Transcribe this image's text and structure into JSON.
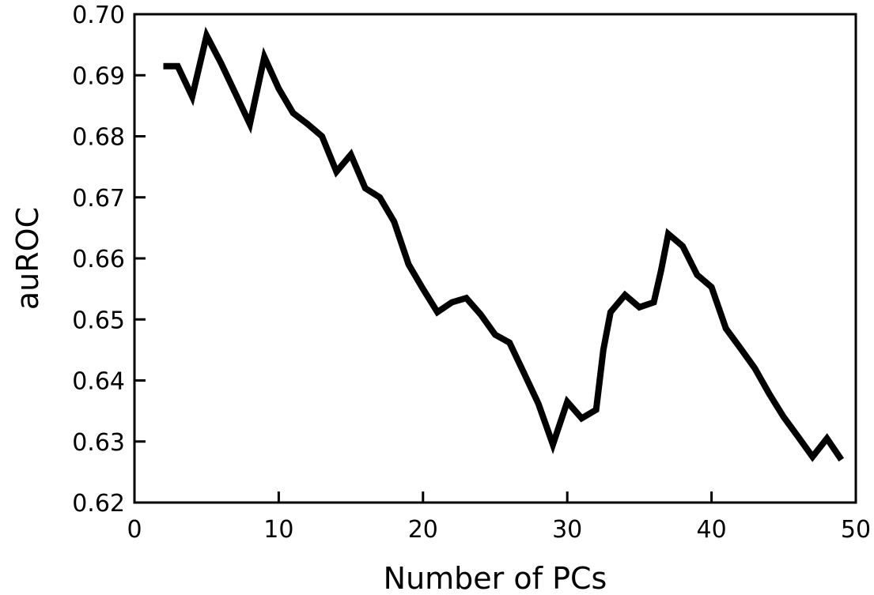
{
  "chart_data": {
    "type": "line",
    "title": "",
    "xlabel": "Number of PCs",
    "ylabel": "auROC",
    "xlim": [
      0,
      50
    ],
    "ylim": [
      0.62,
      0.7
    ],
    "x_ticks": [
      0,
      10,
      20,
      30,
      40,
      50
    ],
    "x_tick_labels": [
      "0",
      "10",
      "20",
      "30",
      "40",
      "50"
    ],
    "y_ticks": [
      0.62,
      0.63,
      0.64,
      0.65,
      0.66,
      0.67,
      0.68,
      0.69,
      0.7
    ],
    "y_tick_labels": [
      "0.62",
      "0.63",
      "0.64",
      "0.65",
      "0.66",
      "0.67",
      "0.68",
      "0.69",
      "0.70"
    ],
    "grid": false,
    "legend": "none",
    "colors": {
      "line": "#000000",
      "axes": "#000000",
      "background": "#ffffff"
    },
    "series": [
      {
        "x": [
          2,
          3,
          4,
          5,
          6,
          7,
          8,
          9,
          10,
          11,
          12,
          13,
          14,
          15,
          16,
          17,
          18,
          19,
          20,
          21,
          22,
          23,
          24,
          25,
          26,
          27,
          28,
          29,
          30,
          31,
          32,
          32.5,
          33,
          34,
          35,
          36,
          36.5,
          37,
          38,
          39,
          40,
          41,
          42,
          43,
          44,
          45,
          46,
          47,
          48,
          49
        ],
        "values": [
          0.6915,
          0.6915,
          0.6865,
          0.6965,
          0.692,
          0.687,
          0.682,
          0.693,
          0.6878,
          0.6838,
          0.682,
          0.68,
          0.6742,
          0.677,
          0.6715,
          0.67,
          0.666,
          0.659,
          0.655,
          0.6512,
          0.6528,
          0.6535,
          0.6508,
          0.6475,
          0.6462,
          0.6412,
          0.6362,
          0.6295,
          0.6365,
          0.6338,
          0.6352,
          0.645,
          0.6512,
          0.654,
          0.652,
          0.6528,
          0.658,
          0.664,
          0.662,
          0.6573,
          0.6553,
          0.6485,
          0.6453,
          0.642,
          0.6378,
          0.634,
          0.6308,
          0.6275,
          0.6305,
          0.627
        ]
      }
    ]
  }
}
